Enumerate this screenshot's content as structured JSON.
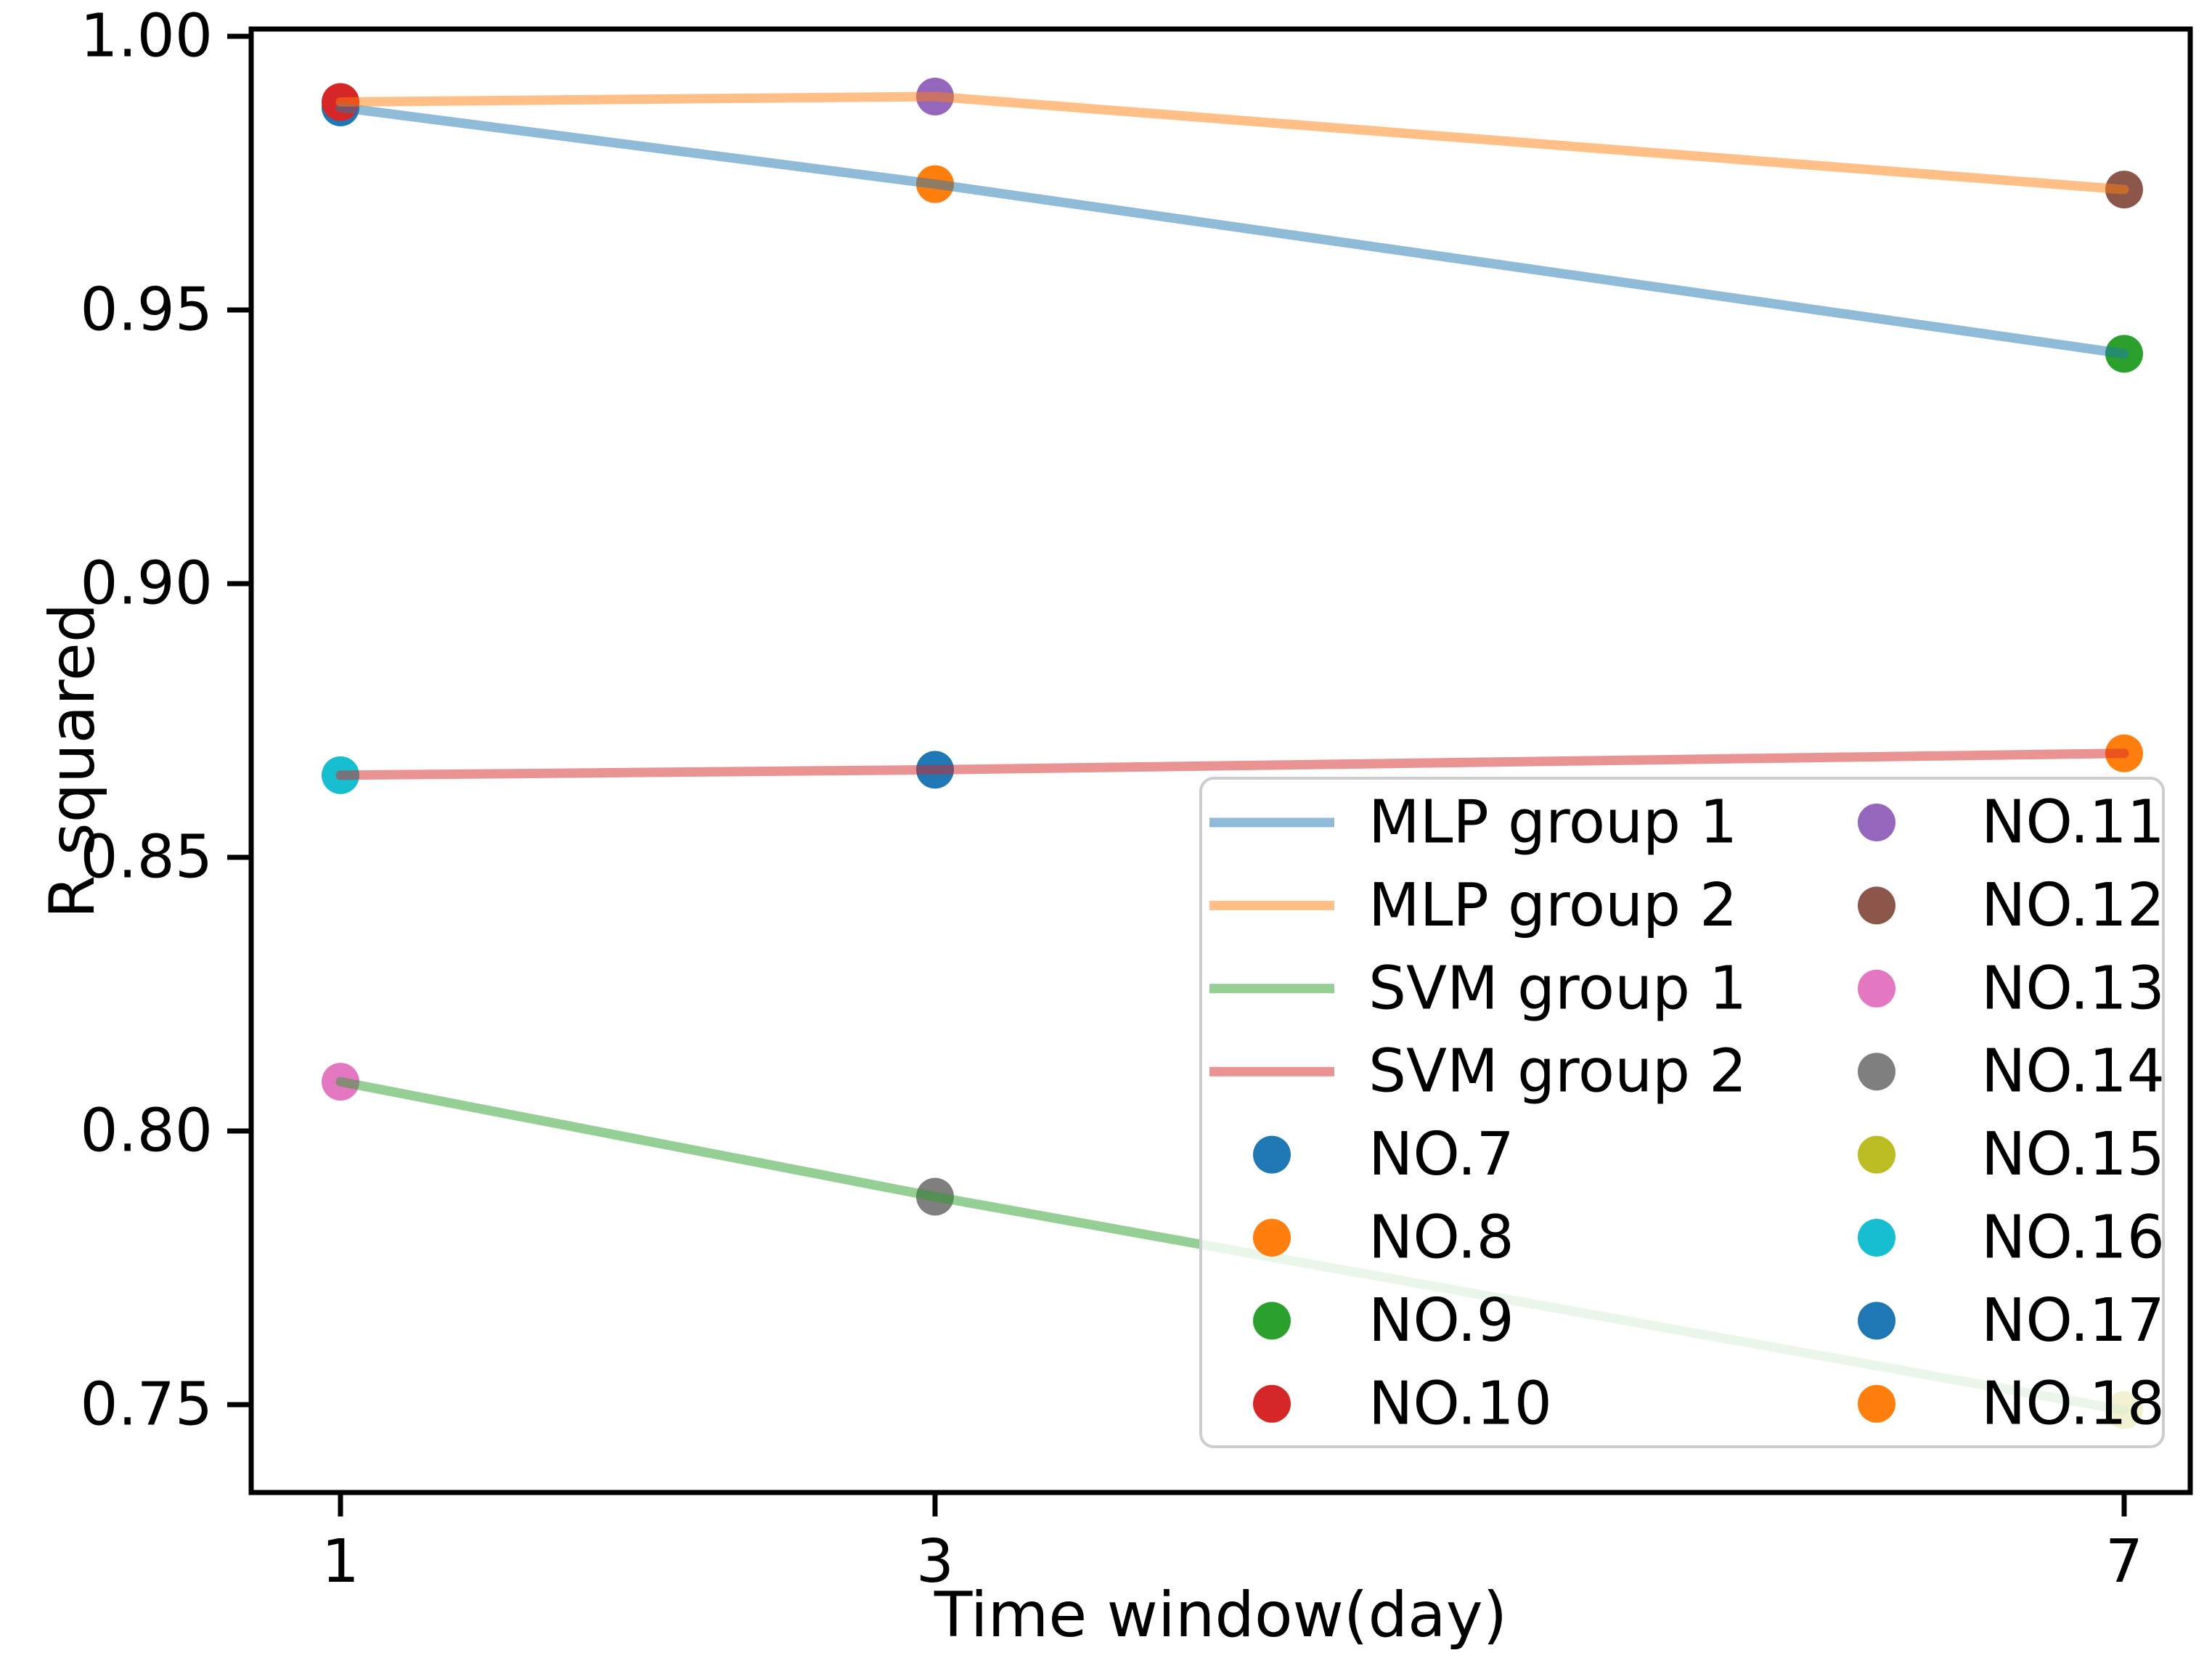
{
  "chart_data": {
    "type": "line",
    "title": "",
    "xlabel": "Time window(day)",
    "ylabel": "R squared",
    "x_ticks": [
      1,
      3,
      7
    ],
    "x_tick_labels": [
      "1",
      "3",
      "7"
    ],
    "y_ticks": [
      1.0,
      0.95,
      0.9,
      0.85,
      0.8,
      0.75
    ],
    "y_tick_labels": [
      "1.00",
      "0.95",
      "0.90",
      "0.85",
      "0.80",
      "0.75"
    ],
    "xlim": [
      0.7,
      7.3
    ],
    "ylim": [
      0.734,
      1.001
    ],
    "grid": false,
    "line_alpha": 0.5,
    "series": [
      {
        "name": "MLP group 1",
        "color": "#1f77b4",
        "x": [
          1,
          3,
          7
        ],
        "y": [
          0.987,
          0.973,
          0.942
        ]
      },
      {
        "name": "MLP group 2",
        "color": "#ff7f0e",
        "x": [
          1,
          3,
          7
        ],
        "y": [
          0.988,
          0.989,
          0.972
        ]
      },
      {
        "name": "SVM group 1",
        "color": "#2ca02c",
        "x": [
          1,
          3,
          7
        ],
        "y": [
          0.809,
          0.788,
          0.749
        ]
      },
      {
        "name": "SVM group 2",
        "color": "#d62728",
        "x": [
          1,
          3,
          7
        ],
        "y": [
          0.865,
          0.866,
          0.869
        ]
      }
    ],
    "points": [
      {
        "name": "NO.7",
        "color": "#1f77b4",
        "x": 1,
        "y": 0.987
      },
      {
        "name": "NO.8",
        "color": "#ff7f0e",
        "x": 3,
        "y": 0.973
      },
      {
        "name": "NO.9",
        "color": "#2ca02c",
        "x": 7,
        "y": 0.942
      },
      {
        "name": "NO.10",
        "color": "#d62728",
        "x": 1,
        "y": 0.988
      },
      {
        "name": "NO.11",
        "color": "#9467bd",
        "x": 3,
        "y": 0.989
      },
      {
        "name": "NO.12",
        "color": "#8c564b",
        "x": 7,
        "y": 0.972
      },
      {
        "name": "NO.13",
        "color": "#e377c2",
        "x": 1,
        "y": 0.809
      },
      {
        "name": "NO.14",
        "color": "#7f7f7f",
        "x": 3,
        "y": 0.788
      },
      {
        "name": "NO.15",
        "color": "#bcbd22",
        "x": 7,
        "y": 0.749
      },
      {
        "name": "NO.16",
        "color": "#17becf",
        "x": 1,
        "y": 0.865
      },
      {
        "name": "NO.17",
        "color": "#1f77b4",
        "x": 3,
        "y": 0.866
      },
      {
        "name": "NO.18",
        "color": "#ff7f0e",
        "x": 7,
        "y": 0.869
      }
    ],
    "legend": {
      "position": "lower right",
      "background": "#ffffff",
      "frame_color": "#cccccc",
      "frame_opacity": 0.8,
      "column1": [
        "MLP group 1",
        "MLP group 2",
        "SVM group 1",
        "SVM group 2",
        "NO.7",
        "NO.8",
        "NO.9",
        "NO.10"
      ],
      "column2": [
        "NO.11",
        "NO.12",
        "NO.13",
        "NO.14",
        "NO.15",
        "NO.16",
        "NO.17",
        "NO.18"
      ]
    },
    "axis_color": "#000000",
    "text_color": "#000000"
  }
}
